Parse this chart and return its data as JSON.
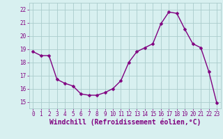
{
  "x": [
    0,
    1,
    2,
    3,
    4,
    5,
    6,
    7,
    8,
    9,
    10,
    11,
    12,
    13,
    14,
    15,
    16,
    17,
    18,
    19,
    20,
    21,
    22,
    23
  ],
  "y": [
    18.8,
    18.5,
    18.5,
    16.7,
    16.4,
    16.2,
    15.6,
    15.5,
    15.5,
    15.7,
    16.0,
    16.6,
    18.0,
    18.8,
    19.1,
    19.4,
    20.9,
    21.8,
    21.7,
    20.5,
    19.4,
    19.1,
    17.3,
    14.9
  ],
  "line_color": "#800080",
  "marker": "D",
  "marker_size": 2.5,
  "linewidth": 1.0,
  "bg_color": "#d8f0f0",
  "grid_color": "#aacccc",
  "xlabel": "Windchill (Refroidissement éolien,°C)",
  "ylim": [
    14.5,
    22.5
  ],
  "xlim": [
    -0.5,
    23.5
  ],
  "yticks": [
    15,
    16,
    17,
    18,
    19,
    20,
    21,
    22
  ],
  "xticks": [
    0,
    1,
    2,
    3,
    4,
    5,
    6,
    7,
    8,
    9,
    10,
    11,
    12,
    13,
    14,
    15,
    16,
    17,
    18,
    19,
    20,
    21,
    22,
    23
  ],
  "tick_fontsize": 5.5,
  "xlabel_fontsize": 7.0
}
